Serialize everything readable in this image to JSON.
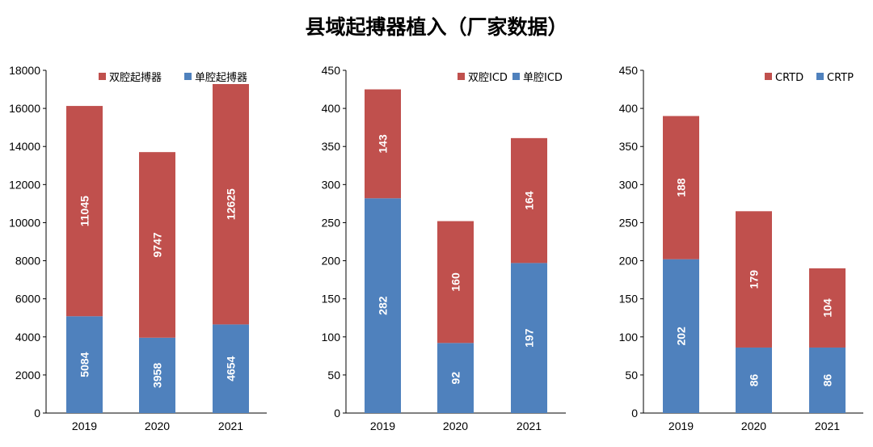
{
  "title": "县域起搏器植入（厂家数据）",
  "colors": {
    "red": "#C0504D",
    "blue": "#4F81BD"
  },
  "chart_data": [
    {
      "type": "bar",
      "stacked": true,
      "categories": [
        "2019",
        "2020",
        "2021"
      ],
      "ylim": [
        0,
        18000
      ],
      "yticks": [
        0,
        2000,
        4000,
        6000,
        8000,
        10000,
        12000,
        14000,
        16000,
        18000
      ],
      "legend": "top",
      "series": [
        {
          "name": "单腔起搏器",
          "color": "#4F81BD",
          "values": [
            5084,
            3958,
            4654
          ]
        },
        {
          "name": "双腔起搏器",
          "color": "#C0504D",
          "values": [
            11045,
            9747,
            12625
          ]
        }
      ],
      "legend_order": [
        1,
        0
      ]
    },
    {
      "type": "bar",
      "stacked": true,
      "categories": [
        "2019",
        "2020",
        "2021"
      ],
      "ylim": [
        0,
        450
      ],
      "yticks": [
        0,
        50,
        100,
        150,
        200,
        250,
        300,
        350,
        400,
        450
      ],
      "legend": "top-right",
      "series": [
        {
          "name": "单腔ICD",
          "color": "#4F81BD",
          "values": [
            282,
            92,
            197
          ]
        },
        {
          "name": "双腔ICD",
          "color": "#C0504D",
          "values": [
            143,
            160,
            164
          ]
        }
      ],
      "legend_order": [
        1,
        0
      ]
    },
    {
      "type": "bar",
      "stacked": true,
      "categories": [
        "2019",
        "2020",
        "2021"
      ],
      "ylim": [
        0,
        450
      ],
      "yticks": [
        0,
        50,
        100,
        150,
        200,
        250,
        300,
        350,
        400,
        450
      ],
      "legend": "top-right",
      "series": [
        {
          "name": "CRTP",
          "color": "#4F81BD",
          "values": [
            202,
            86,
            86
          ]
        },
        {
          "name": "CRTD",
          "color": "#C0504D",
          "values": [
            188,
            179,
            104
          ]
        }
      ],
      "legend_order": [
        1,
        0
      ]
    }
  ]
}
